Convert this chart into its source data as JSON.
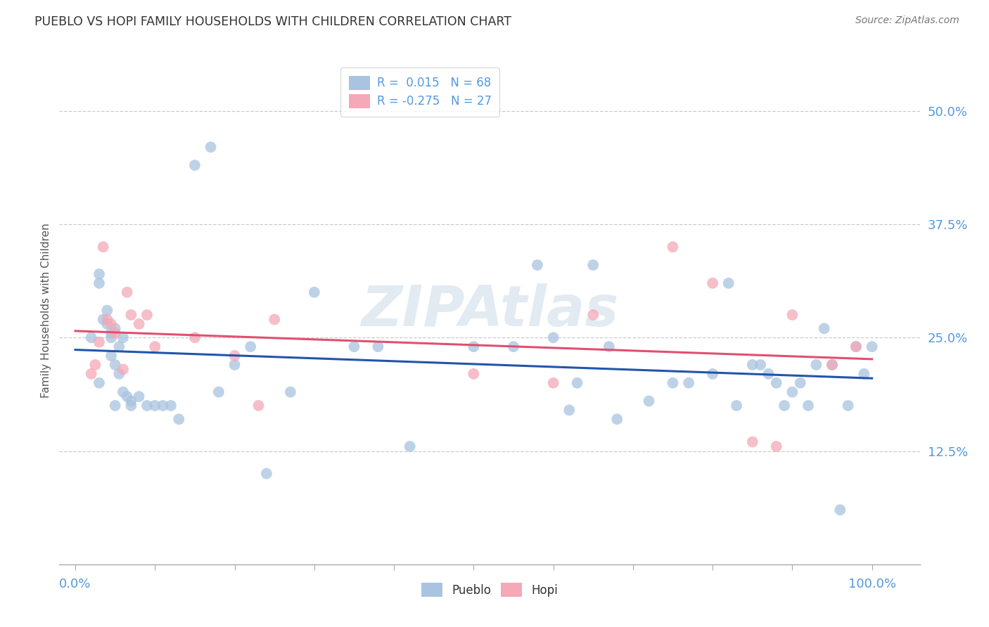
{
  "title": "PUEBLO VS HOPI FAMILY HOUSEHOLDS WITH CHILDREN CORRELATION CHART",
  "source": "Source: ZipAtlas.com",
  "ylabel": "Family Households with Children",
  "watermark": "ZIPAtlas",
  "pueblo_R": 0.015,
  "pueblo_N": 68,
  "hopi_R": -0.275,
  "hopi_N": 27,
  "pueblo_color": "#a8c4e0",
  "hopi_color": "#f4a8b8",
  "pueblo_line_color": "#2255aa",
  "hopi_line_color": "#e05070",
  "background_color": "#ffffff",
  "grid_color": "#cccccc",
  "xlim": [
    -0.02,
    1.06
  ],
  "ylim": [
    0.0,
    0.56
  ],
  "ytick_positions": [
    0.125,
    0.25,
    0.375,
    0.5
  ],
  "ytick_labels": [
    "12.5%",
    "25.0%",
    "37.5%",
    "50.0%"
  ],
  "xtick_positions": [
    0.0,
    0.1,
    0.2,
    0.3,
    0.4,
    0.5,
    0.6,
    0.7,
    0.8,
    0.9,
    1.0
  ],
  "pueblo_x": [
    0.02,
    0.03,
    0.03,
    0.035,
    0.04,
    0.04,
    0.045,
    0.045,
    0.045,
    0.05,
    0.05,
    0.055,
    0.055,
    0.06,
    0.06,
    0.065,
    0.07,
    0.08,
    0.1,
    0.12,
    0.13,
    0.15,
    0.17,
    0.18,
    0.2,
    0.22,
    0.24,
    0.27,
    0.3,
    0.35,
    0.38,
    0.42,
    0.5,
    0.55,
    0.58,
    0.6,
    0.62,
    0.63,
    0.65,
    0.67,
    0.68,
    0.72,
    0.75,
    0.77,
    0.8,
    0.82,
    0.83,
    0.85,
    0.86,
    0.87,
    0.88,
    0.89,
    0.9,
    0.91,
    0.92,
    0.93,
    0.94,
    0.95,
    0.96,
    0.97,
    0.98,
    0.99,
    1.0,
    0.03,
    0.05,
    0.07,
    0.09,
    0.11
  ],
  "pueblo_y": [
    0.25,
    0.31,
    0.32,
    0.27,
    0.28,
    0.265,
    0.255,
    0.25,
    0.23,
    0.26,
    0.22,
    0.24,
    0.21,
    0.25,
    0.19,
    0.185,
    0.18,
    0.185,
    0.175,
    0.175,
    0.16,
    0.44,
    0.46,
    0.19,
    0.22,
    0.24,
    0.1,
    0.19,
    0.3,
    0.24,
    0.24,
    0.13,
    0.24,
    0.24,
    0.33,
    0.25,
    0.17,
    0.2,
    0.33,
    0.24,
    0.16,
    0.18,
    0.2,
    0.2,
    0.21,
    0.31,
    0.175,
    0.22,
    0.22,
    0.21,
    0.2,
    0.175,
    0.19,
    0.2,
    0.175,
    0.22,
    0.26,
    0.22,
    0.06,
    0.175,
    0.24,
    0.21,
    0.24,
    0.2,
    0.175,
    0.175,
    0.175,
    0.175
  ],
  "hopi_x": [
    0.02,
    0.025,
    0.03,
    0.035,
    0.04,
    0.045,
    0.05,
    0.06,
    0.065,
    0.07,
    0.08,
    0.09,
    0.1,
    0.15,
    0.2,
    0.23,
    0.25,
    0.5,
    0.6,
    0.65,
    0.75,
    0.8,
    0.85,
    0.88,
    0.9,
    0.95,
    0.98
  ],
  "hopi_y": [
    0.21,
    0.22,
    0.245,
    0.35,
    0.27,
    0.265,
    0.255,
    0.215,
    0.3,
    0.275,
    0.265,
    0.275,
    0.24,
    0.25,
    0.23,
    0.175,
    0.27,
    0.21,
    0.2,
    0.275,
    0.35,
    0.31,
    0.135,
    0.13,
    0.275,
    0.22,
    0.24
  ]
}
